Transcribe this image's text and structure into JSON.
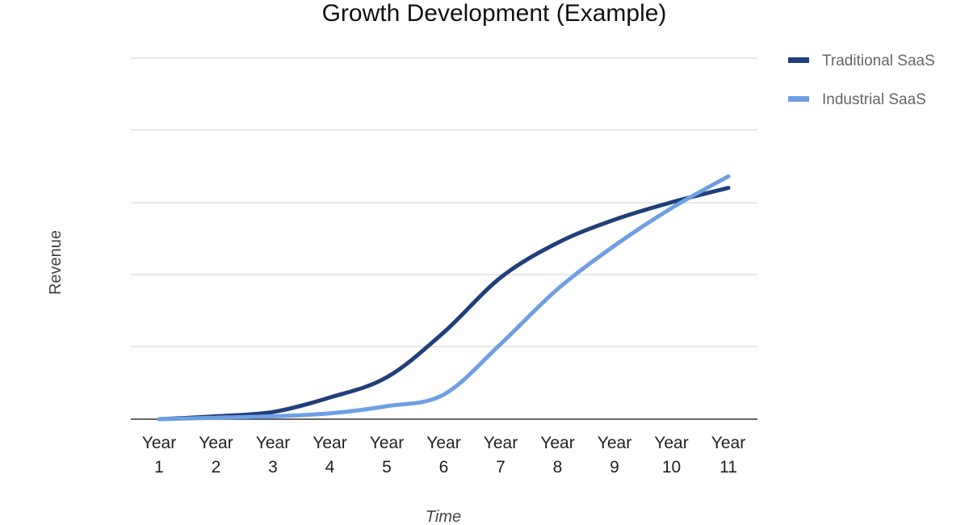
{
  "chart_data": {
    "type": "line",
    "title": "Growth Development (Example)",
    "xlabel": "Time",
    "ylabel": "Revenue",
    "categories": [
      [
        "Year",
        "1"
      ],
      [
        "Year",
        "2"
      ],
      [
        "Year",
        "3"
      ],
      [
        "Year",
        "4"
      ],
      [
        "Year",
        "5"
      ],
      [
        "Year",
        "6"
      ],
      [
        "Year",
        "7"
      ],
      [
        "Year",
        "8"
      ],
      [
        "Year",
        "9"
      ],
      [
        "Year",
        "10"
      ],
      [
        "Year",
        "11"
      ]
    ],
    "ylim": [
      0,
      100
    ],
    "y_tick_labels_visible": false,
    "grid": true,
    "legend_position": "right",
    "curve": "smooth",
    "series": [
      {
        "name": "Traditional SaaS",
        "color": "#1f3f7a",
        "values": [
          0,
          1,
          2.5,
          7.5,
          14.5,
          30,
          49,
          61,
          69,
          75,
          80
        ]
      },
      {
        "name": "Industrial SaaS",
        "color": "#6f9fe3",
        "values": [
          0,
          0.5,
          1,
          2,
          4.5,
          8.5,
          26,
          45,
          60,
          73,
          84
        ]
      }
    ]
  }
}
